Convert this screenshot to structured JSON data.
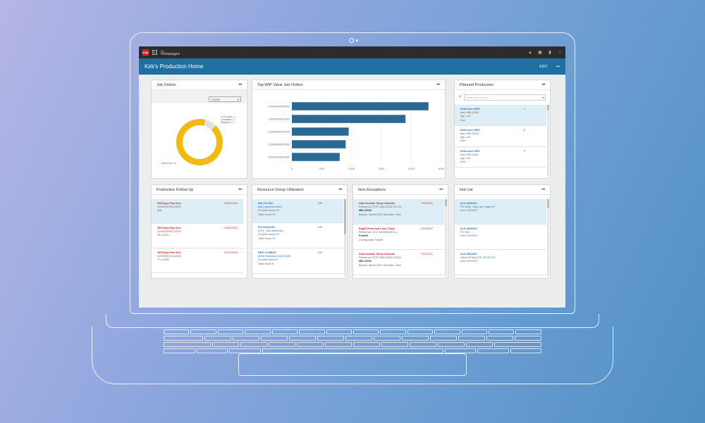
{
  "app": {
    "brand": "infor",
    "crumb_small": "My",
    "crumb_title": "Homepages"
  },
  "title": "Kirk's Production Home",
  "title_action": "EDIT",
  "title_more": "•••",
  "more": "•••",
  "job_orders": {
    "title": "Job Orders",
    "filter": "TODAY",
    "legend": {
      "a": "In Process: 1",
      "b": "Complete: 0",
      "c": "Stopped: 0"
    },
    "past_due": "Past Due: 11",
    "chart_data": {
      "type": "pie",
      "categories": [
        "In Process",
        "Complete",
        "Stopped",
        "Past Due"
      ],
      "values": [
        1,
        0,
        0,
        11
      ],
      "colors": [
        "#e1e1e1",
        "#cccccc",
        "#bbbbbb",
        "#f2b90f"
      ]
    }
  },
  "wip": {
    "title": "Top WIP Value Job Orders",
    "chart_data": {
      "type": "bar",
      "orientation": "horizontal",
      "categories": [
        "D2000000149-0000",
        "D2000000146-0000",
        "D2000000145-0000",
        "D2000000050-0000",
        "D2000000143-0000"
      ],
      "values": [
        457000,
        380000,
        190000,
        180000,
        160000
      ],
      "xlim": [
        0,
        500000
      ],
      "xticks": [
        "0",
        "100K",
        "200K",
        "300K",
        "400K",
        "500K"
      ],
      "color": "#2a6896",
      "grid": true
    }
  },
  "planned": {
    "title": "Planned Production",
    "search_placeholder": "Search for an item",
    "items": [
      {
        "ref_label": "Reference",
        "ref": "MPS",
        "num": "1",
        "item_label": "Item",
        "item": "MB-12000",
        "qty_label": "Qty",
        "qty": "1.00",
        "due": "Due"
      },
      {
        "ref_label": "Reference",
        "ref": "MPS",
        "num": "2",
        "item_label": "Item",
        "item": "MB-12000",
        "qty_label": "Qty",
        "qty": "1.00",
        "due": "Due"
      },
      {
        "ref_label": "Reference",
        "ref": "MPS",
        "num": "3",
        "item_label": "Item",
        "item": "MB-12000",
        "qty_label": "Qty",
        "qty": "1.00",
        "due": "Due"
      }
    ]
  },
  "follow": {
    "title": "Production Follow Up",
    "items": [
      {
        "tag": "948 Days Past Due",
        "date": "10/30/2019",
        "job": "D2000000093-0000",
        "item": "808"
      },
      {
        "tag": "495 Days Past Due",
        "date": "10/30/2019",
        "job": "D2000000097-0000",
        "item": "PA-12000"
      },
      {
        "tag": "183 Days Past Due",
        "date": "07/22/2016",
        "job": "D2000000134-0000",
        "item": "TC-12000"
      }
    ]
  },
  "resource": {
    "title": "Resource Group Utilization",
    "items": [
      {
        "code": "INS-10-LRG",
        "pct": "100",
        "desc": "Mfg Inspection Area",
        "a": "On-shift Hours 32",
        "b": "Total Hours 72"
      },
      {
        "code": "PS-1068-LRG",
        "pct": "100",
        "desc": "MTN - Sub Assembly",
        "a": "On-shift Hours 16",
        "b": "Total Hours 16"
      },
      {
        "code": "SMF-10-MBG1",
        "pct": "100",
        "desc": "Metal Stamping Area Briefs",
        "a": "On-shift Hours 8",
        "b": "Total Hours 8"
      }
    ]
  },
  "exceptions": {
    "title": "Item Exceptions",
    "items": [
      {
        "tag": "Date Outside Shop Calendar",
        "date": "7/11/2021",
        "ref": "Reference  FCST MB-12000 210711",
        "item": "MB-12000",
        "desc": "Bicycle, Model-20S, Mountain, Blue"
      },
      {
        "tag": "Rapid Protected Lots 1 Days",
        "date": "2/24/2017",
        "ref": "Reference  XCO D0000000415-1",
        "item": "Forklift",
        "desc": "Configurable Forklift"
      },
      {
        "tag": "Date Outside Shop Calendar",
        "date": "9/11/2021",
        "ref": "Reference  FCST MB-12000 210911",
        "item": "MB-12000",
        "desc": "Bicycle, Model-20S, Mountain, Blue"
      }
    ]
  },
  "hotlist": {
    "title": "Hot List",
    "items": [
      {
        "code": "A13-JB40162",
        "desc": "FG Desk, Onyx dar Stage CF",
        "due": "Due  1/19/2017"
      },
      {
        "code": "A13-JB40340",
        "desc": "FG Kell",
        "due": "Due  1/19/2017"
      },
      {
        "code": "A13-JB42280",
        "desc": "Label Kit Assy OS CR 32 SVL",
        "due": "Due  1/19/2017"
      }
    ]
  }
}
